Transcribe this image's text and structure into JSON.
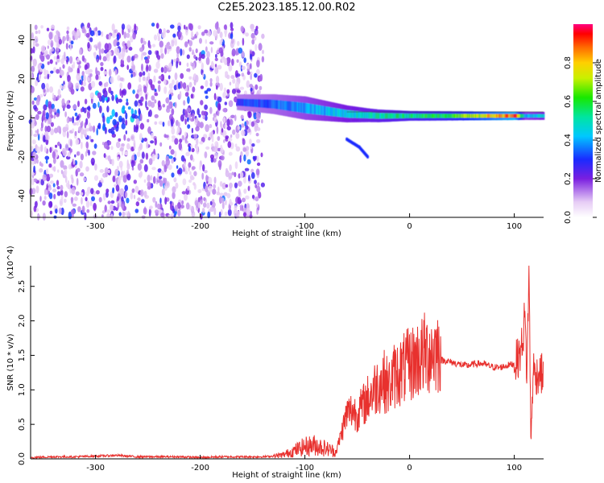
{
  "title": "C2E5.2023.185.12.00.R02",
  "chart_data": [
    {
      "type": "heatmap",
      "title": "C2E5.2023.185.12.00.R02",
      "xlabel": "Height of straight line (km)",
      "ylabel": "Frequency (Hz)",
      "xlim": [
        -362,
        128
      ],
      "ylim": [
        -51,
        48
      ],
      "x_ticks": [
        -300,
        -200,
        -100,
        0,
        100
      ],
      "y_ticks": [
        -40,
        -20,
        0,
        20,
        40
      ],
      "colorbar": {
        "label": "Normalized spectral amplitude",
        "range": [
          0,
          1
        ],
        "ticks": [
          0.0,
          0.2,
          0.4,
          0.6,
          0.8
        ],
        "colormap": "white-purple-blue-cyan-green-yellow-orange-red-magenta"
      },
      "features": [
        {
          "desc": "diffuse broadband noise",
          "x_range": [
            -362,
            -140
          ],
          "freq_range": [
            -51,
            48
          ],
          "amplitude": 0.15
        },
        {
          "desc": "noise cluster",
          "x_range": [
            -300,
            -260
          ],
          "freq_range": [
            -10,
            15
          ],
          "amplitude": 0.3
        },
        {
          "desc": "echo band",
          "x_range": [
            -165,
            128
          ],
          "center_freq": [
            [
              -165,
              8
            ],
            [
              -130,
              7
            ],
            [
              -100,
              5
            ],
            [
              -60,
              2
            ],
            [
              -30,
              1
            ],
            [
              0,
              1
            ],
            [
              60,
              1
            ],
            [
              100,
              1
            ],
            [
              128,
              1
            ]
          ],
          "width_hz": [
            [
              -165,
              8
            ],
            [
              -100,
              12
            ],
            [
              -40,
              7
            ],
            [
              0,
              5
            ],
            [
              128,
              4
            ]
          ],
          "amplitude": [
            [
              -165,
              0.3
            ],
            [
              -120,
              0.35
            ],
            [
              -60,
              0.45
            ],
            [
              0,
              0.55
            ],
            [
              40,
              0.6
            ],
            [
              80,
              0.8
            ],
            [
              100,
              0.9
            ],
            [
              110,
              0.4
            ],
            [
              128,
              0.45
            ]
          ]
        },
        {
          "desc": "descending trace",
          "points": [
            [
              -60,
              -11
            ],
            [
              -48,
              -15
            ],
            [
              -40,
              -20
            ]
          ],
          "amplitude": 0.3
        }
      ]
    },
    {
      "type": "line",
      "xlabel": "Height of straight line (km)",
      "ylabel": "SNR (10 * v/v)",
      "y_multiplier": "(x10^4)",
      "xlim": [
        -362,
        128
      ],
      "ylim": [
        0,
        2.8
      ],
      "x_ticks": [
        -300,
        -200,
        -100,
        0,
        100
      ],
      "y_ticks": [
        0.0,
        0.5,
        1.0,
        1.5,
        2.0,
        2.5
      ],
      "color": "#e8312e",
      "series": [
        {
          "x": [
            -362,
            -340,
            -320,
            -300,
            -280,
            -260,
            -240,
            -220,
            -200,
            -180,
            -160,
            -140,
            -130,
            -120,
            -110,
            -100,
            -90,
            -80,
            -70,
            -65,
            -60,
            -55,
            -50,
            -45,
            -40,
            -35,
            -30,
            -25,
            -20,
            -15,
            -10,
            -5,
            0,
            5,
            10,
            15,
            20,
            25,
            30,
            35,
            40,
            45,
            50,
            55,
            60,
            65,
            70,
            75,
            80,
            85,
            90,
            95,
            100,
            105,
            108,
            110,
            112,
            114,
            116,
            118,
            120,
            124,
            128
          ],
          "y": [
            0.02,
            0.03,
            0.03,
            0.04,
            0.05,
            0.03,
            0.03,
            0.03,
            0.02,
            0.03,
            0.03,
            0.03,
            0.04,
            0.06,
            0.12,
            0.18,
            0.2,
            0.15,
            0.1,
            0.35,
            0.6,
            0.65,
            0.6,
            0.7,
            0.8,
            0.9,
            1.0,
            1.05,
            0.95,
            1.1,
            1.15,
            1.2,
            1.25,
            1.3,
            1.35,
            1.4,
            1.42,
            1.45,
            1.43,
            1.42,
            1.4,
            1.38,
            1.36,
            1.35,
            1.37,
            1.38,
            1.38,
            1.35,
            1.33,
            1.32,
            1.34,
            1.36,
            1.38,
            1.5,
            1.7,
            2.1,
            1.2,
            2.75,
            0.15,
            1.35,
            1.2,
            1.25,
            1.22
          ]
        }
      ]
    }
  ]
}
